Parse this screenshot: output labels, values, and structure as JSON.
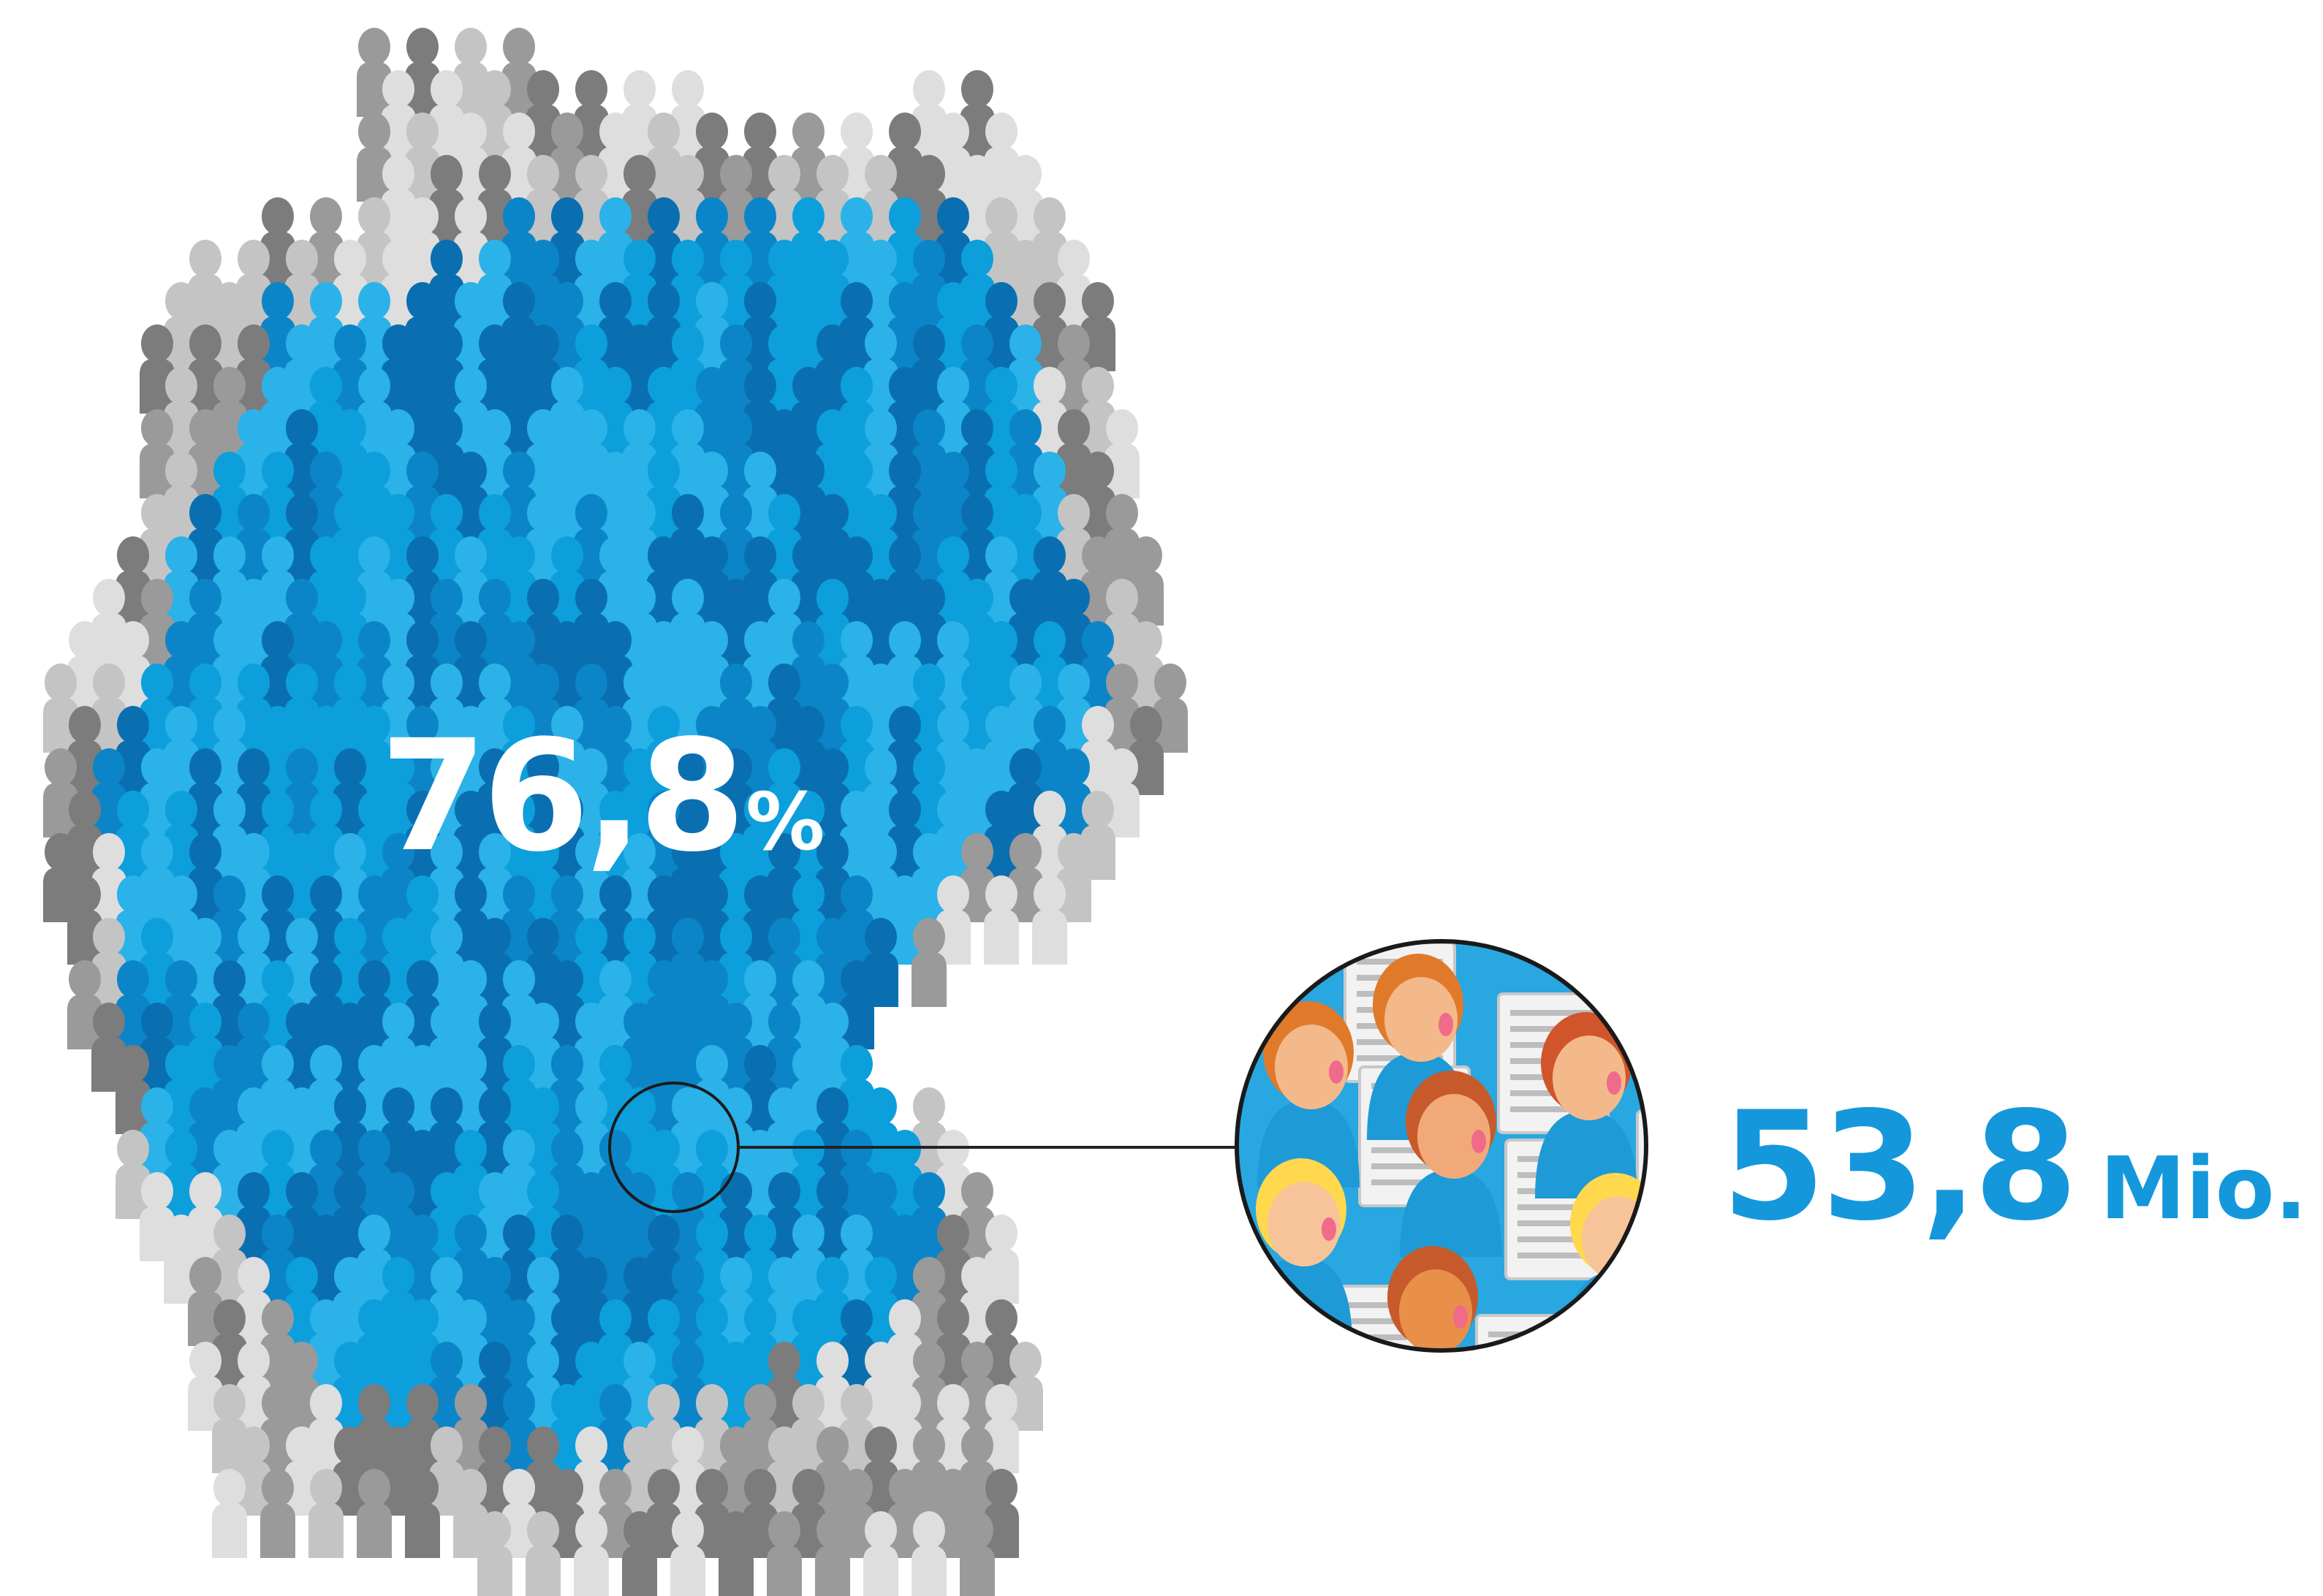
{
  "share": {
    "value": "76,8",
    "unit": "%"
  },
  "users": {
    "value": "53,8",
    "unit": "Mio."
  },
  "share_value": 0.768,
  "colors": {
    "blue_shades": [
      "#0a6fb0",
      "#0c85c8",
      "#0c9fdc",
      "#2bb2e8"
    ],
    "gray_shades": [
      "#9a9a9a",
      "#c4c4c4",
      "#dedede",
      "#7c7c7c"
    ],
    "label_blue": "#1597db",
    "circle_bg": "#29a7e1",
    "connector": "#222222"
  },
  "icons": {
    "person": "person-silhouette-icon",
    "magnifier": "magnifier-circle",
    "reader": "newspaper-reader-icon"
  }
}
